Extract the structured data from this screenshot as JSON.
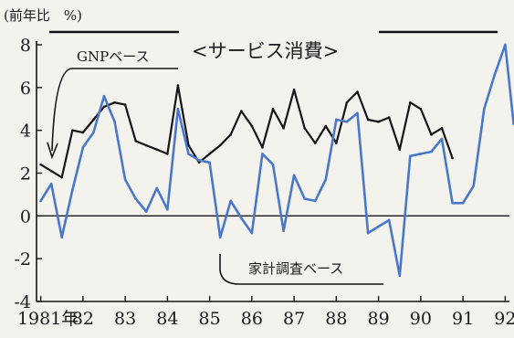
{
  "chart_data": {
    "type": "line",
    "unit_label": "(前年比　%)",
    "title": "<サービス消費>",
    "y_ticks": [
      "8",
      "6",
      "4",
      "2",
      "0",
      "-2",
      "-4"
    ],
    "x_tick_labels": [
      "1981年",
      "82",
      "83",
      "84",
      "85",
      "86",
      "87",
      "88",
      "89",
      "90",
      "91",
      "92"
    ],
    "ylim": [
      -4,
      8
    ],
    "xlim": [
      1980.9,
      1992.1
    ],
    "x_ticks": [
      1981,
      1982,
      1983,
      1984,
      1985,
      1986,
      1987,
      1988,
      1989,
      1990,
      1991,
      1992
    ],
    "grid": false,
    "colors": {
      "GNP": "#151515",
      "household": "#4a78c8",
      "axis": "#151515"
    },
    "series": [
      {
        "name": "GNPベース",
        "key": "GNP",
        "x": [
          1981.0,
          1981.25,
          1981.5,
          1981.75,
          1982.0,
          1982.25,
          1982.5,
          1982.75,
          1983.0,
          1983.25,
          1983.5,
          1983.75,
          1984.0,
          1984.25,
          1984.5,
          1984.75,
          1985.0,
          1985.25,
          1985.5,
          1985.75,
          1986.0,
          1986.25,
          1986.5,
          1986.75,
          1987.0,
          1987.25,
          1987.5,
          1987.75,
          1988.0,
          1988.25,
          1988.5,
          1988.75,
          1989.0,
          1989.25,
          1989.5,
          1989.75,
          1990.0,
          1990.25,
          1990.5,
          1990.75
        ],
        "values": [
          2.4,
          2.1,
          1.8,
          4.0,
          3.9,
          4.5,
          5.1,
          5.3,
          5.2,
          3.5,
          3.3,
          3.1,
          2.9,
          6.1,
          3.3,
          2.5,
          2.9,
          3.3,
          3.8,
          4.9,
          4.2,
          3.2,
          5.0,
          4.1,
          5.9,
          4.1,
          3.4,
          4.2,
          3.4,
          5.3,
          5.8,
          4.5,
          4.4,
          4.6,
          3.1,
          5.3,
          5.0,
          3.8,
          4.1,
          2.7
        ]
      },
      {
        "name": "家計調査ベース",
        "key": "household",
        "x": [
          1981.0,
          1981.25,
          1981.5,
          1981.75,
          1982.0,
          1982.25,
          1982.5,
          1982.75,
          1983.0,
          1983.25,
          1983.5,
          1983.75,
          1984.0,
          1984.25,
          1984.5,
          1984.75,
          1985.0,
          1985.25,
          1985.5,
          1985.75,
          1986.0,
          1986.25,
          1986.5,
          1986.75,
          1987.0,
          1987.25,
          1987.5,
          1987.75,
          1988.0,
          1988.25,
          1988.5,
          1988.75,
          1989.0,
          1989.25,
          1989.5,
          1989.75,
          1990.0,
          1990.25,
          1990.5,
          1990.75,
          1991.0,
          1991.25,
          1991.5,
          1991.75,
          1992.0,
          1992.2
        ],
        "values": [
          0.7,
          1.5,
          -1.0,
          1.2,
          3.2,
          3.9,
          5.6,
          4.4,
          1.7,
          0.8,
          0.2,
          1.3,
          0.3,
          5.0,
          2.9,
          2.6,
          2.5,
          -1.0,
          0.7,
          -0.1,
          -0.8,
          2.9,
          2.4,
          -0.7,
          1.9,
          0.8,
          0.7,
          1.7,
          4.5,
          4.4,
          4.8,
          -0.8,
          -0.5,
          -0.2,
          -2.8,
          2.8,
          2.9,
          3.0,
          3.6,
          0.6,
          0.6,
          1.4,
          5.0,
          6.6,
          8.0,
          4.3
        ]
      }
    ],
    "annotations": {
      "gnp_label": "GNPベース",
      "household_label": "家計調査ベース"
    }
  }
}
